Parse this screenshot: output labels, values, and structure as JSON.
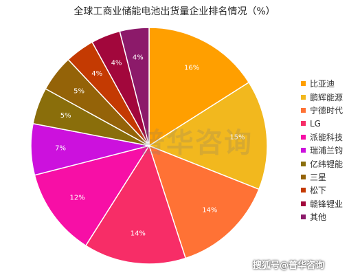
{
  "chart_data": {
    "type": "pie",
    "title": "全球工商业储能电池出货量企业排名情况（%）",
    "slices": [
      {
        "label": "比亚迪",
        "value": 16,
        "data_label": "16%",
        "color": "#FF9F00"
      },
      {
        "label": "鹏辉能源",
        "value": 15,
        "data_label": "15%",
        "color": "#F2B81E"
      },
      {
        "label": "宁德时代",
        "value": 14,
        "data_label": "14%",
        "color": "#FF7235"
      },
      {
        "label": "LG",
        "value": 14,
        "data_label": "14%",
        "color": "#F72D67"
      },
      {
        "label": "派能科技",
        "value": 12,
        "data_label": "12%",
        "color": "#F70FA6"
      },
      {
        "label": "瑞浦兰钧",
        "value": 7,
        "data_label": "7%",
        "color": "#CC11DD"
      },
      {
        "label": "亿纬锂能",
        "value": 5,
        "data_label": "5%",
        "color": "#8A6E0B"
      },
      {
        "label": "三星",
        "value": 5,
        "data_label": "5%",
        "color": "#946308"
      },
      {
        "label": "松下",
        "value": 4,
        "data_label": "4%",
        "color": "#C43A02"
      },
      {
        "label": "赣锋锂业",
        "value": 4,
        "data_label": "4%",
        "color": "#A2073C"
      },
      {
        "label": "其他",
        "value": 4,
        "data_label": "4%",
        "color": "#8C1A6A"
      }
    ],
    "legend_position": "right"
  },
  "watermarks": {
    "center": "普华咨询",
    "corner": "搜狐号@普华咨询"
  }
}
